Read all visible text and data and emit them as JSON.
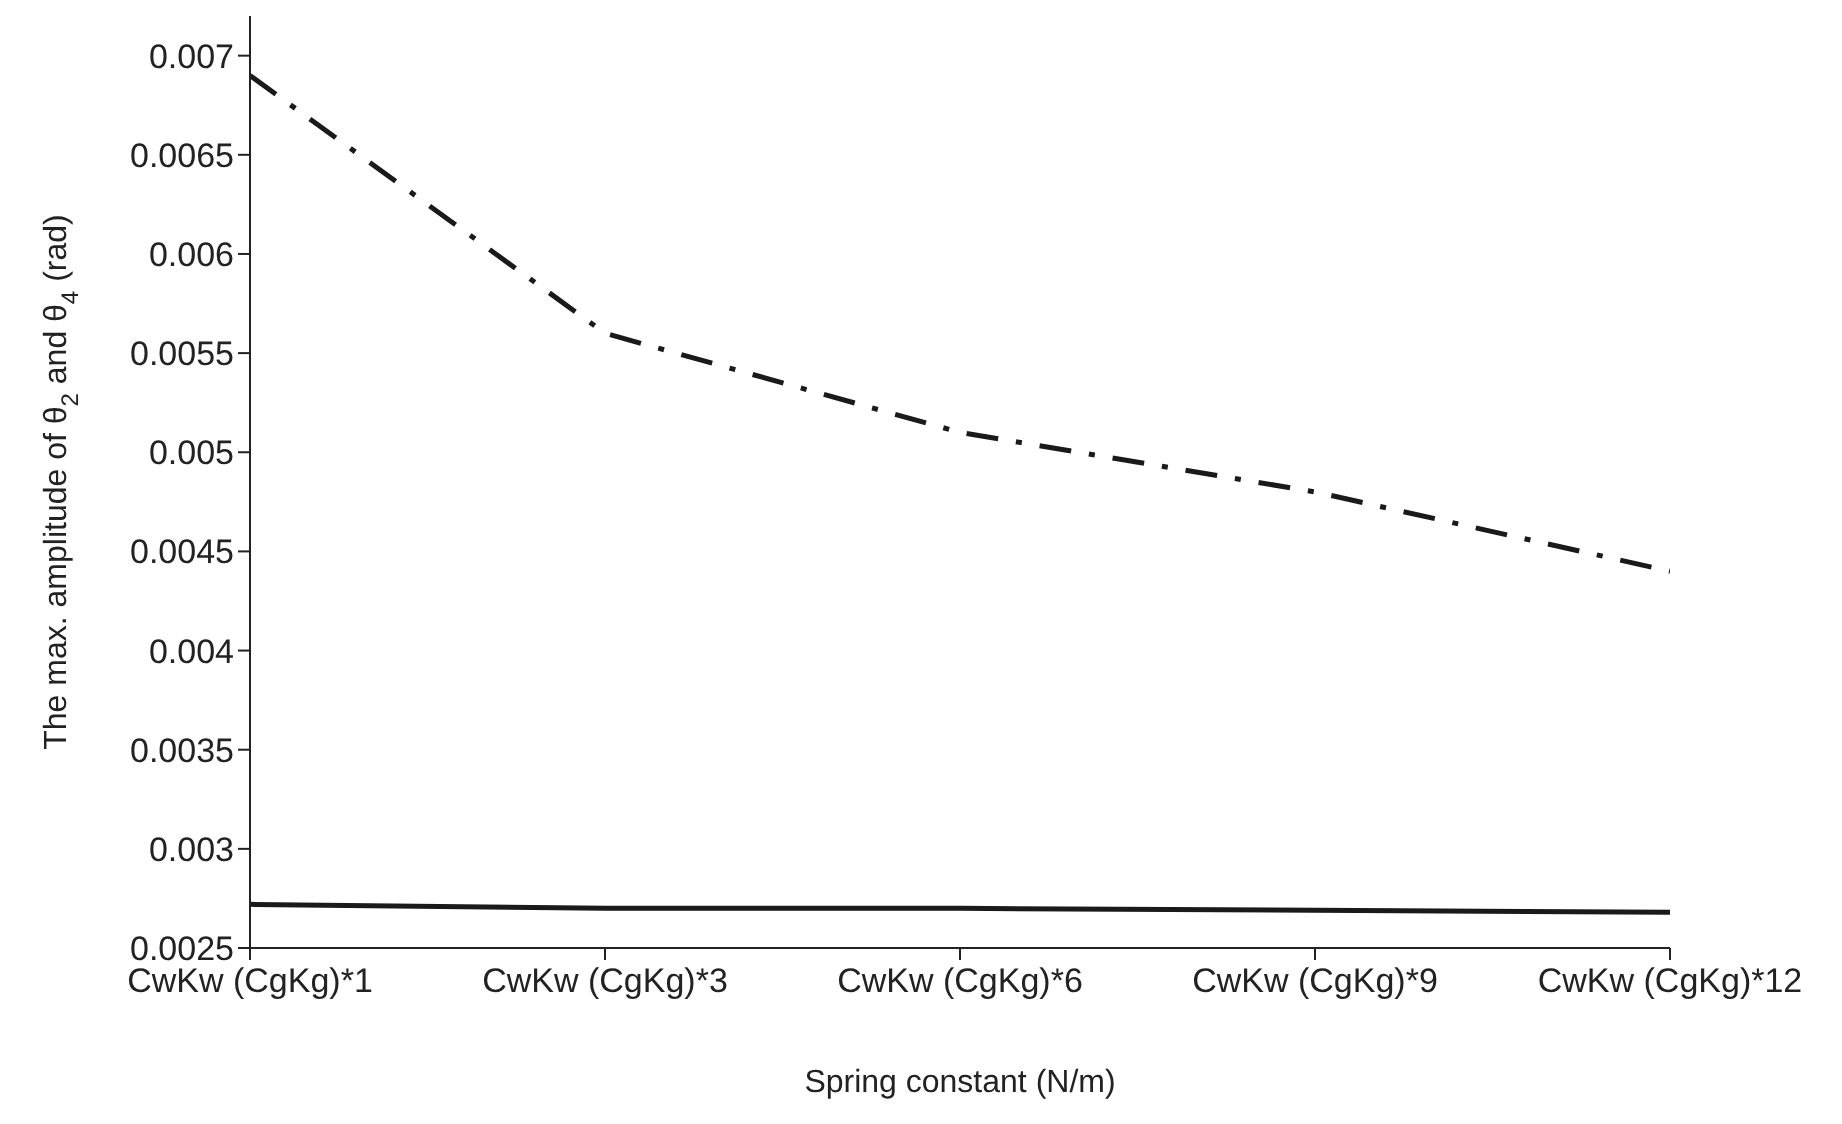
{
  "chart_data": {
    "type": "line",
    "xlabel": "Spring constant (N/m)",
    "ylabel": "The max. amplitude of θ$_{2}$ and θ$_{4}$ (rad)",
    "categories": [
      "CwKw (CgKg)*1",
      "CwKw (CgKg)*3",
      "CwKw (CgKg)*6",
      "CwKw (CgKg)*9",
      "CwKw (CgKg)*12"
    ],
    "series": [
      {
        "color": "#1a1a1a",
        "line_style": "dashed",
        "values": [
          0.0069,
          0.0056,
          0.0051,
          0.0048,
          0.0044
        ]
      },
      {
        "color": "#1a1a1a",
        "line_style": "solid",
        "values": [
          0.00272,
          0.0027,
          0.0027,
          0.00269,
          0.00268
        ]
      }
    ],
    "ylim": [
      0.0025,
      0.0072
    ],
    "yticks": [
      0.0025,
      0.003,
      0.0035,
      0.004,
      0.0045,
      0.005,
      0.0055,
      0.006,
      0.0065,
      0.007
    ],
    "grid": false,
    "legend": false,
    "marker": "none"
  }
}
